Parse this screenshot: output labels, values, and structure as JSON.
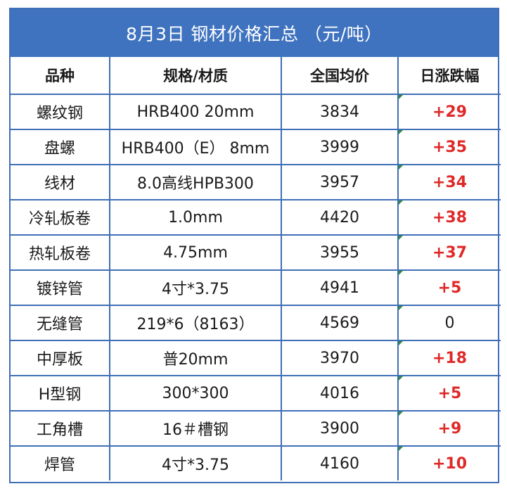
{
  "title": "8月3日 钢材价格汇总 （元/吨）",
  "headers": {
    "variety": "品种",
    "spec": "规格/材质",
    "avg_price": "全国均价",
    "daily_change": "日涨跌幅"
  },
  "rows": [
    {
      "variety": "螺纹钢",
      "spec": "HRB400 20mm",
      "avg_price": "3834",
      "change": "+29"
    },
    {
      "variety": "盘螺",
      "spec": "HRB400（E） 8mm",
      "avg_price": "3999",
      "change": "+35"
    },
    {
      "variety": "线材",
      "spec": "8.0高线HPB300",
      "avg_price": "3957",
      "change": "+34"
    },
    {
      "variety": "冷轧板卷",
      "spec": "1.0mm",
      "avg_price": "4420",
      "change": "+38"
    },
    {
      "variety": "热轧板卷",
      "spec": "4.75mm",
      "avg_price": "3955",
      "change": "+37"
    },
    {
      "variety": "镀锌管",
      "spec": "4寸*3.75",
      "avg_price": "4941",
      "change": "+5"
    },
    {
      "variety": "无缝管",
      "spec": "219*6（8163）",
      "avg_price": "4569",
      "change": "0"
    },
    {
      "variety": "中厚板",
      "spec": "普20mm",
      "avg_price": "3970",
      "change": "+18"
    },
    {
      "variety": "H型钢",
      "spec": "300*300",
      "avg_price": "4016",
      "change": "+5"
    },
    {
      "variety": "工角槽",
      "spec": "16＃槽钢",
      "avg_price": "3900",
      "change": "+9"
    },
    {
      "variety": "焊管",
      "spec": "4寸*3.75",
      "avg_price": "4160",
      "change": "+10"
    }
  ],
  "colors": {
    "header_blue": "#3f73bf",
    "rise_red": "#e02828",
    "flat_black": "#1a1a1a"
  }
}
